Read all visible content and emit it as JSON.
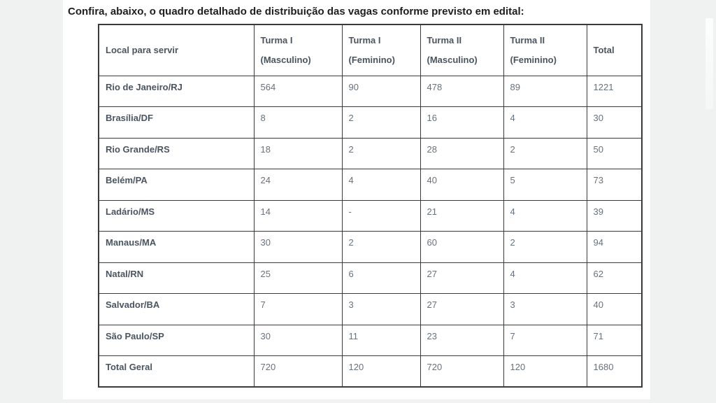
{
  "page": {
    "title": "Confira, abaixo, o quadro detalhado de distribuição das vagas conforme previsto em edital:"
  },
  "table": {
    "columns": [
      {
        "line1": "Local para servir",
        "line2": ""
      },
      {
        "line1": "Turma I",
        "line2": "(Masculino)"
      },
      {
        "line1": "Turma I",
        "line2": "(Feminino)"
      },
      {
        "line1": "Turma II",
        "line2": "(Masculino)"
      },
      {
        "line1": "Turma II",
        "line2": "(Feminino)"
      },
      {
        "line1": "Total",
        "line2": ""
      }
    ],
    "rows": [
      {
        "local": "Rio de Janeiro/RJ",
        "turma1_masc": "564",
        "turma1_fem": "90",
        "turma2_masc": "478",
        "turma2_fem": "89",
        "total": "1221"
      },
      {
        "local": "Brasília/DF",
        "turma1_masc": "8",
        "turma1_fem": "2",
        "turma2_masc": "16",
        "turma2_fem": "4",
        "total": "30"
      },
      {
        "local": "Rio Grande/RS",
        "turma1_masc": "18",
        "turma1_fem": "2",
        "turma2_masc": "28",
        "turma2_fem": "2",
        "total": "50"
      },
      {
        "local": "Belém/PA",
        "turma1_masc": "24",
        "turma1_fem": "4",
        "turma2_masc": "40",
        "turma2_fem": "5",
        "total": "73"
      },
      {
        "local": "Ladário/MS",
        "turma1_masc": "14",
        "turma1_fem": "-",
        "turma2_masc": "21",
        "turma2_fem": "4",
        "total": "39"
      },
      {
        "local": "Manaus/MA",
        "turma1_masc": "30",
        "turma1_fem": "2",
        "turma2_masc": "60",
        "turma2_fem": "2",
        "total": "94"
      },
      {
        "local": "Natal/RN",
        "turma1_masc": "25",
        "turma1_fem": "6",
        "turma2_masc": "27",
        "turma2_fem": "4",
        "total": "62"
      },
      {
        "local": "Salvador/BA",
        "turma1_masc": "7",
        "turma1_fem": "3",
        "turma2_masc": "27",
        "turma2_fem": "3",
        "total": "40"
      },
      {
        "local": "São Paulo/SP",
        "turma1_masc": "30",
        "turma1_fem": "11",
        "turma2_masc": "23",
        "turma2_fem": "7",
        "total": "71"
      },
      {
        "local": "Total Geral",
        "turma1_masc": "720",
        "turma1_fem": "120",
        "turma2_masc": "720",
        "turma2_fem": "120",
        "total": "1680"
      }
    ]
  },
  "colors": {
    "page_background": "#f0f1f1",
    "panel_background": "#ffffff",
    "title_text": "#1e1e1e",
    "header_text": "#4a5560",
    "value_text": "#68727c",
    "border": "#3a3a3a"
  }
}
